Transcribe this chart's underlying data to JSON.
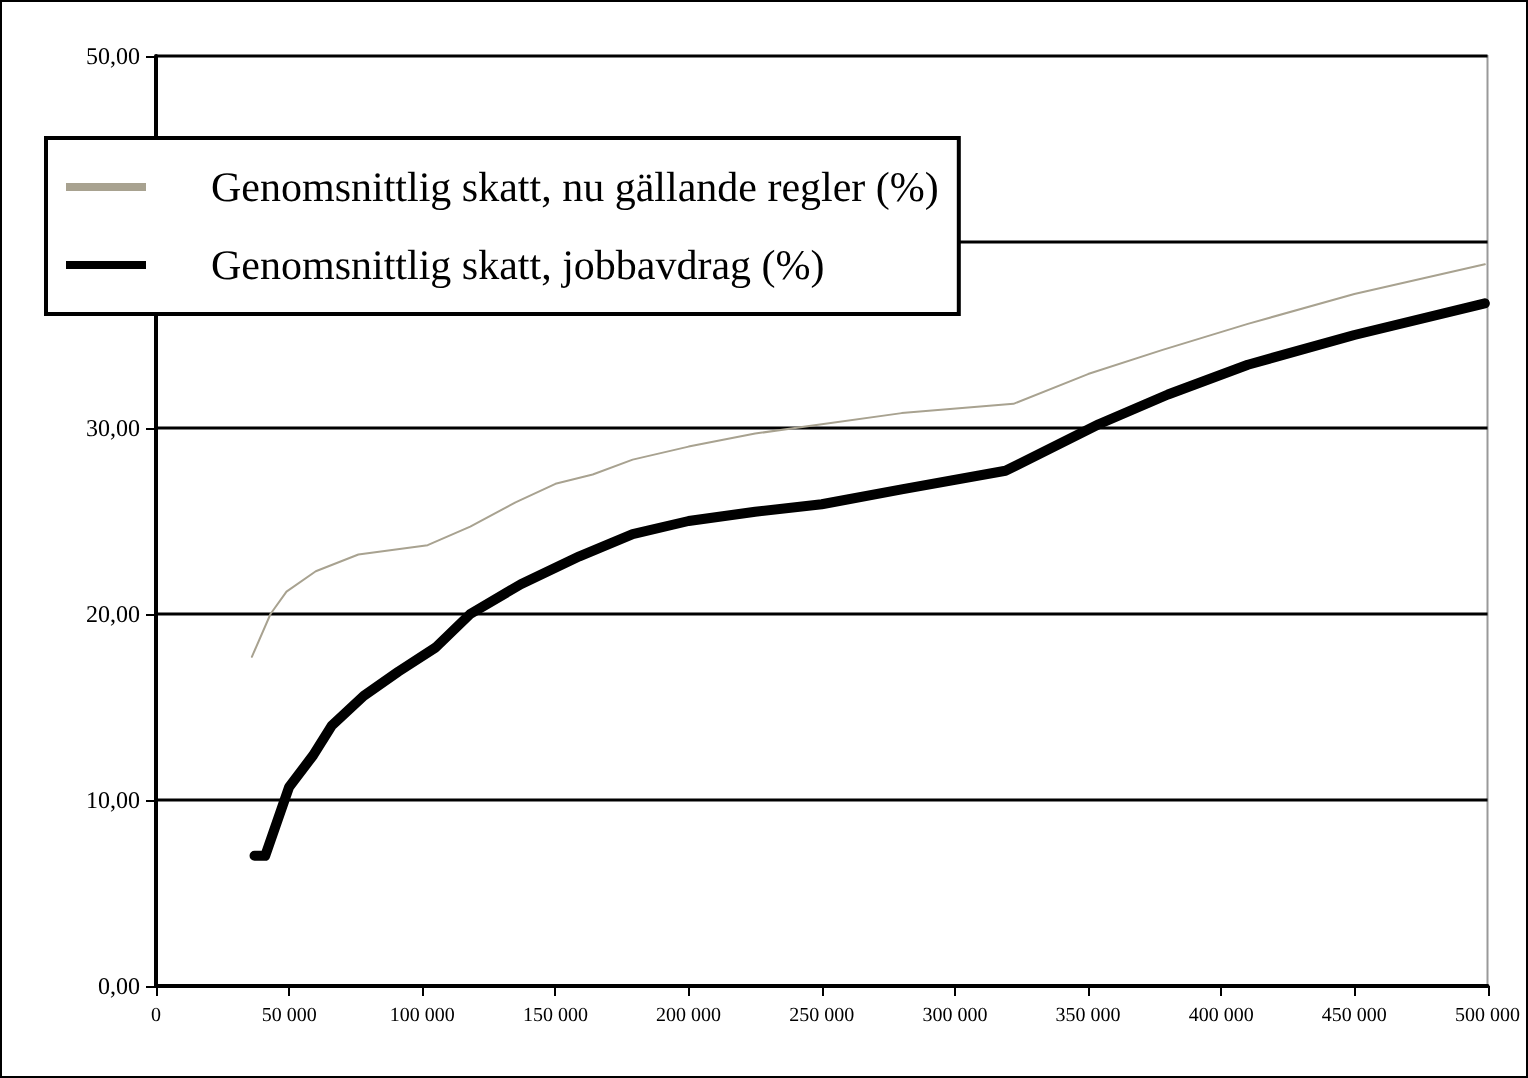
{
  "chart_data": {
    "type": "line",
    "xlim": [
      0,
      500000
    ],
    "xticks": [
      0,
      {
        "value": 50000,
        "label": "50 000"
      },
      {
        "value": 100000,
        "label": "100 000"
      },
      {
        "value": 150000,
        "label": "150 000"
      },
      {
        "value": 200000,
        "label": "200 000"
      },
      {
        "value": 250000,
        "label": "250 000"
      },
      {
        "value": 300000,
        "label": "300 000"
      },
      {
        "value": 350000,
        "label": "350 000"
      },
      {
        "value": 400000,
        "label": "400 000"
      },
      {
        "value": 450000,
        "label": "450 000"
      },
      {
        "value": 500000,
        "label": "500 000"
      }
    ],
    "ylim": [
      0,
      50
    ],
    "yticks": [
      {
        "value": 0,
        "label": "0,00"
      },
      {
        "value": 10,
        "label": "10,00"
      },
      {
        "value": 20,
        "label": "20,00"
      },
      {
        "value": 30,
        "label": "30,00"
      },
      {
        "value": 40,
        "label": null
      },
      {
        "value": 50,
        "label": "50,00"
      }
    ],
    "grid": "y",
    "legend": "top left",
    "marker": "none",
    "series": [
      {
        "name": "Genomsnittlig skatt, nu gällande regler (%)",
        "color": "#a8a290",
        "x": [
          36000,
          43000,
          49000,
          60000,
          76000,
          102000,
          118000,
          135000,
          150000,
          164000,
          179000,
          200000,
          225000,
          250000,
          280000,
          322000,
          350000,
          378000,
          410000,
          450000,
          499000
        ],
        "values": [
          17.7,
          20.0,
          21.2,
          22.3,
          23.2,
          23.7,
          24.7,
          26.0,
          27.0,
          27.5,
          28.3,
          29.0,
          29.7,
          30.2,
          30.8,
          31.3,
          32.9,
          34.2,
          35.6,
          37.2,
          38.8
        ]
      },
      {
        "name": "Genomsnittlig skatt, jobbavdrag (%)",
        "color": "#000000",
        "x": [
          37000,
          41000,
          50000,
          59000,
          66000,
          78000,
          91000,
          105000,
          118000,
          137000,
          159000,
          179000,
          200000,
          225000,
          250000,
          280000,
          319000,
          354000,
          380000,
          410000,
          450000,
          499000
        ],
        "values": [
          7.0,
          7.0,
          10.7,
          12.4,
          14.0,
          15.6,
          16.9,
          18.2,
          20.0,
          21.6,
          23.1,
          24.3,
          25.0,
          25.5,
          25.9,
          26.7,
          27.7,
          30.2,
          31.8,
          33.4,
          35.0,
          36.7
        ]
      }
    ]
  }
}
